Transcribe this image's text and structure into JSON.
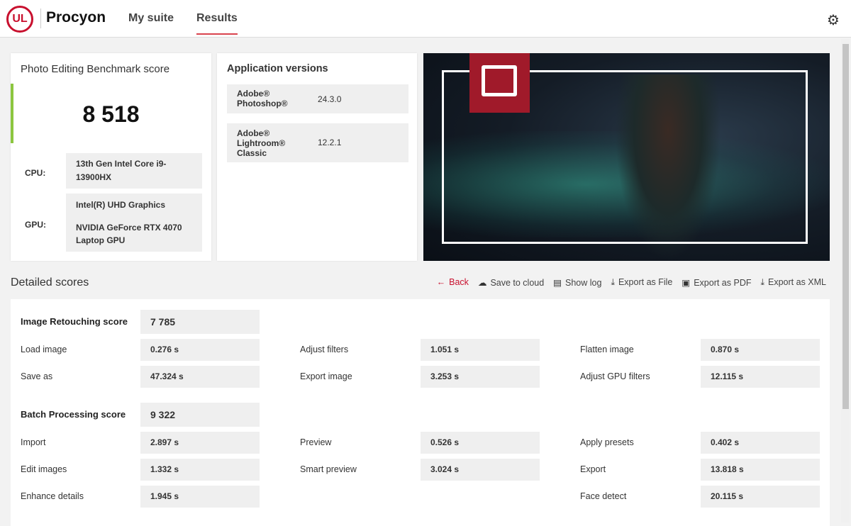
{
  "header": {
    "logo": "UL",
    "brand": "Procyon",
    "nav": [
      {
        "label": "My suite"
      },
      {
        "label": "Results",
        "active": true
      }
    ],
    "settings_icon": "gear-icon"
  },
  "score_card": {
    "title": "Photo Editing Benchmark score",
    "score": "8 518",
    "accent": "#8cc63f",
    "cpu_label": "CPU:",
    "cpu": "13th Gen Intel Core i9-13900HX",
    "gpu_label": "GPU:",
    "gpu1": "Intel(R) UHD Graphics",
    "gpu2": "NVIDIA GeForce RTX 4070 Laptop GPU"
  },
  "versions": {
    "title": "Application versions",
    "apps": [
      {
        "name": "Adobe® Photoshop®",
        "version": "24.3.0"
      },
      {
        "name": "Adobe® Lightroom® Classic",
        "version": "12.2.1"
      }
    ]
  },
  "detailed": {
    "title": "Detailed scores",
    "actions": [
      {
        "label": "Back",
        "icon": "arrow-left-icon"
      },
      {
        "label": "Save to cloud",
        "icon": "cloud-upload-icon"
      },
      {
        "label": "Show log",
        "icon": "document-icon"
      },
      {
        "label": "Export as File",
        "icon": "download-icon"
      },
      {
        "label": "Export as PDF",
        "icon": "floppy-disk-icon"
      },
      {
        "label": "Export as XML",
        "icon": "download-icon"
      }
    ],
    "sections": [
      {
        "label": "Image Retouching score",
        "score": "7 785",
        "rows": [
          [
            {
              "label": "Load image",
              "value": "0.276 s"
            },
            {
              "label": "Adjust filters",
              "value": "1.051 s"
            },
            {
              "label": "Flatten image",
              "value": "0.870 s"
            }
          ],
          [
            {
              "label": "Save as",
              "value": "47.324 s"
            },
            {
              "label": "Export image",
              "value": "3.253 s"
            },
            {
              "label": "Adjust GPU filters",
              "value": "12.115 s"
            }
          ]
        ]
      },
      {
        "label": "Batch Processing score",
        "score": "9 322",
        "rows": [
          [
            {
              "label": "Import",
              "value": "2.897 s"
            },
            {
              "label": "Preview",
              "value": "0.526 s"
            },
            {
              "label": "Apply presets",
              "value": "0.402 s"
            }
          ],
          [
            {
              "label": "Edit images",
              "value": "1.332 s"
            },
            {
              "label": "Smart preview",
              "value": "3.024 s"
            },
            {
              "label": "Export",
              "value": "13.818 s"
            }
          ],
          [
            {
              "label": "Enhance details",
              "value": "1.945 s"
            },
            null,
            {
              "label": "Face detect",
              "value": "20.115 s"
            }
          ]
        ]
      }
    ]
  },
  "colors": {
    "brand_red": "#c8102e",
    "back_red": "#c8102e"
  }
}
